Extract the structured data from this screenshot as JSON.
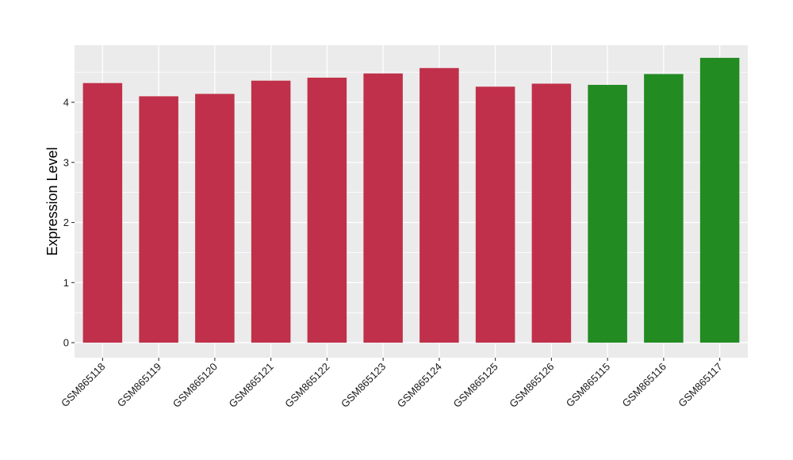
{
  "chart_data": {
    "type": "bar",
    "title": "",
    "xlabel": "",
    "ylabel": "Expression Level",
    "ylim": [
      -0.25,
      4.95
    ],
    "yticks": [
      0,
      1,
      2,
      3,
      4
    ],
    "grid": true,
    "legend": "none",
    "categories": [
      "GSM865118",
      "GSM865119",
      "GSM865120",
      "GSM865121",
      "GSM865122",
      "GSM865123",
      "GSM865124",
      "GSM865125",
      "GSM865126",
      "GSM865115",
      "GSM865116",
      "GSM865117"
    ],
    "values": [
      4.32,
      4.1,
      4.14,
      4.36,
      4.41,
      4.48,
      4.57,
      4.26,
      4.31,
      4.29,
      4.47,
      4.74
    ],
    "bar_colors": [
      "#C0304A",
      "#C0304A",
      "#C0304A",
      "#C0304A",
      "#C0304A",
      "#C0304A",
      "#C0304A",
      "#C0304A",
      "#C0304A",
      "#228B22",
      "#228B22",
      "#228B22"
    ],
    "panel_color": "#EBEBEB",
    "grid_color": "#FFFFFF"
  }
}
